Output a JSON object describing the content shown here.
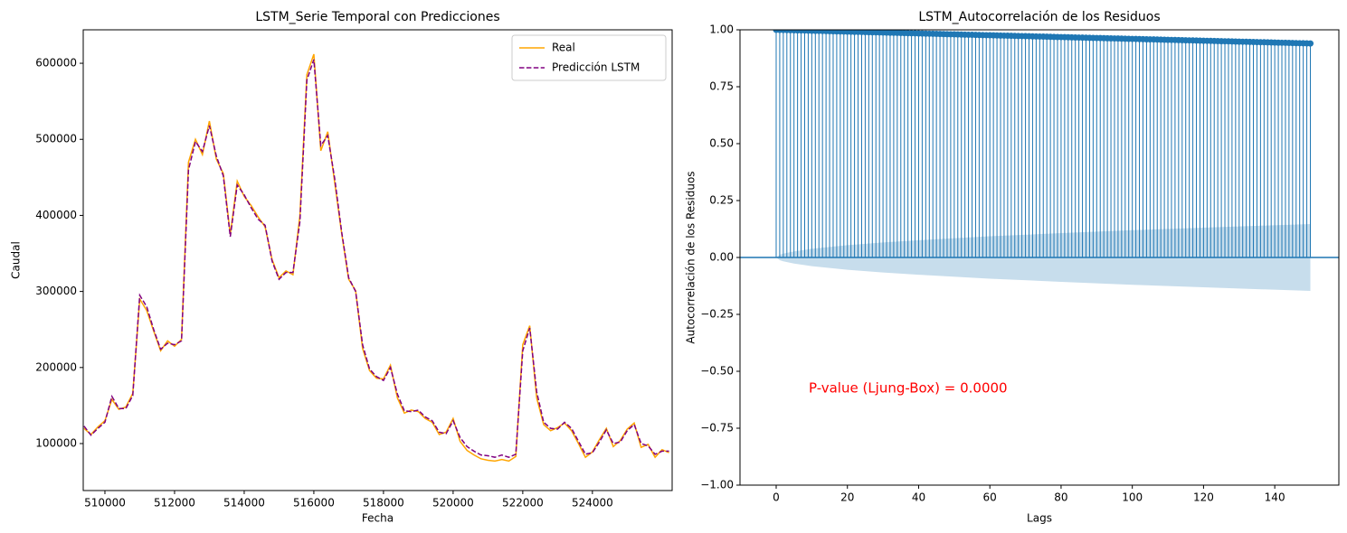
{
  "chart_data": [
    {
      "type": "line",
      "title": "LSTM_Serie Temporal con Predicciones",
      "x_label": "Fecha",
      "y_label": "Caudal",
      "xlim": [
        509377,
        526290
      ],
      "ylim": [
        38250,
        644000
      ],
      "xticks": [
        510000,
        512000,
        514000,
        516000,
        518000,
        520000,
        522000,
        524000
      ],
      "yticks": [
        100000,
        200000,
        300000,
        400000,
        500000,
        600000
      ],
      "legend": "upper right",
      "x": [
        509400,
        509600,
        509800,
        510000,
        510200,
        510400,
        510600,
        510800,
        511000,
        511200,
        511400,
        511600,
        511800,
        512000,
        512200,
        512400,
        512600,
        512800,
        513000,
        513200,
        513400,
        513600,
        513800,
        514000,
        514200,
        514400,
        514600,
        514800,
        515000,
        515200,
        515400,
        515600,
        515800,
        516000,
        516200,
        516400,
        516600,
        516800,
        517000,
        517200,
        517400,
        517600,
        517800,
        518000,
        518200,
        518400,
        518600,
        518800,
        519000,
        519200,
        519400,
        519600,
        519800,
        520000,
        520200,
        520400,
        520600,
        520800,
        521000,
        521200,
        521400,
        521600,
        521800,
        522000,
        522200,
        522400,
        522600,
        522800,
        523000,
        523200,
        523400,
        523600,
        523800,
        524000,
        524200,
        524400,
        524600,
        524800,
        525000,
        525200,
        525400,
        525600,
        525800,
        526000,
        526200
      ],
      "series": [
        {
          "name": "Real",
          "color": "#ffa500",
          "dash": "solid",
          "values": [
            120000,
            112000,
            122000,
            130000,
            158000,
            145000,
            148000,
            166000,
            290000,
            275000,
            248000,
            222000,
            235000,
            228000,
            237000,
            470000,
            500000,
            480000,
            524000,
            474000,
            455000,
            375000,
            445000,
            425000,
            413000,
            398000,
            385000,
            342000,
            318000,
            327000,
            322000,
            400000,
            585000,
            612000,
            485000,
            510000,
            443000,
            376000,
            316000,
            301000,
            225000,
            196000,
            186000,
            185000,
            203000,
            160000,
            140000,
            144000,
            142000,
            133000,
            128000,
            112000,
            115000,
            133000,
            103000,
            91000,
            85000,
            80000,
            78000,
            77000,
            79000,
            77000,
            83000,
            230000,
            255000,
            160000,
            125000,
            117000,
            121000,
            127000,
            117000,
            100000,
            82000,
            89000,
            105000,
            120000,
            96000,
            104000,
            119000,
            127000,
            95000,
            99000,
            82000,
            92000,
            88000
          ]
        },
        {
          "name": "Predicción LSTM",
          "color": "#800080",
          "dash": "dashed",
          "values": [
            123000,
            111000,
            120000,
            128000,
            162000,
            146000,
            146000,
            163000,
            295000,
            280000,
            250000,
            224000,
            232000,
            230000,
            235000,
            460000,
            497000,
            484000,
            518000,
            478000,
            452000,
            372000,
            440000,
            427000,
            410000,
            395000,
            387000,
            340000,
            316000,
            325000,
            325000,
            392000,
            578000,
            605000,
            492000,
            505000,
            448000,
            378000,
            318000,
            300000,
            230000,
            198000,
            188000,
            183000,
            200000,
            165000,
            143000,
            142000,
            144000,
            135000,
            130000,
            115000,
            113000,
            130000,
            108000,
            96000,
            90000,
            85000,
            84000,
            82000,
            85000,
            82000,
            86000,
            222000,
            252000,
            168000,
            128000,
            120000,
            119000,
            128000,
            120000,
            103000,
            86000,
            88000,
            102000,
            118000,
            100000,
            102000,
            117000,
            125000,
            100000,
            97000,
            86000,
            90000,
            90000
          ]
        }
      ]
    },
    {
      "type": "stem",
      "title": "LSTM_Autocorrelación de los Residuos",
      "x_label": "Lags",
      "y_label": "Autocorrelación de los Residuos",
      "xlim": [
        -10.16,
        158.0
      ],
      "ylim": [
        -1,
        1
      ],
      "xticks": [
        0,
        20,
        40,
        60,
        80,
        100,
        120,
        140
      ],
      "yticks": [
        {
          "value": -1,
          "label": "−1.00"
        },
        {
          "value": -0.75,
          "label": "−0.75"
        },
        {
          "value": -0.5,
          "label": "−0.50"
        },
        {
          "value": -0.25,
          "label": "−0.25"
        },
        {
          "value": 0,
          "label": "0.00"
        },
        {
          "value": 0.25,
          "label": "0.25"
        },
        {
          "value": 0.5,
          "label": "0.50"
        },
        {
          "value": 0.75,
          "label": "0.75"
        },
        {
          "value": 1,
          "label": "1.00"
        }
      ],
      "color": "#1f77b4",
      "annotation": {
        "text": "P-value (Ljung-Box) = 0.0000",
        "color": "#ff0000"
      },
      "confidence_band": {
        "x": [
          0,
          1,
          2,
          5,
          10,
          20,
          30,
          40,
          60,
          80,
          100,
          120,
          150
        ],
        "upper": [
          0,
          0.012,
          0.017,
          0.027,
          0.038,
          0.054,
          0.066,
          0.076,
          0.093,
          0.107,
          0.12,
          0.131,
          0.147
        ],
        "lower": [
          0,
          -0.012,
          -0.017,
          -0.027,
          -0.038,
          -0.054,
          -0.066,
          -0.076,
          -0.093,
          -0.107,
          -0.12,
          -0.131,
          -0.147
        ]
      },
      "x": [
        0,
        1,
        2,
        3,
        4,
        5,
        6,
        7,
        8,
        9,
        10,
        11,
        12,
        13,
        14,
        15,
        16,
        17,
        18,
        19,
        20,
        21,
        22,
        23,
        24,
        25,
        26,
        27,
        28,
        29,
        30,
        31,
        32,
        33,
        34,
        35,
        36,
        37,
        38,
        39,
        40,
        41,
        42,
        43,
        44,
        45,
        46,
        47,
        48,
        49,
        50,
        51,
        52,
        53,
        54,
        55,
        56,
        57,
        58,
        59,
        60,
        61,
        62,
        63,
        64,
        65,
        66,
        67,
        68,
        69,
        70,
        71,
        72,
        73,
        74,
        75,
        76,
        77,
        78,
        79,
        80,
        81,
        82,
        83,
        84,
        85,
        86,
        87,
        88,
        89,
        90,
        91,
        92,
        93,
        94,
        95,
        96,
        97,
        98,
        99,
        100,
        101,
        102,
        103,
        104,
        105,
        106,
        107,
        108,
        109,
        110,
        111,
        112,
        113,
        114,
        115,
        116,
        117,
        118,
        119,
        120,
        121,
        122,
        123,
        124,
        125,
        126,
        127,
        128,
        129,
        130,
        131,
        132,
        133,
        134,
        135,
        136,
        137,
        138,
        139,
        140,
        141,
        142,
        143,
        144,
        145,
        146,
        147,
        148,
        149,
        150
      ],
      "values": [
        1,
        0.9996,
        0.9992,
        0.9988,
        0.9984,
        0.998,
        0.9976,
        0.9972,
        0.9968,
        0.9964,
        0.996,
        0.9956,
        0.9952,
        0.9948,
        0.9944,
        0.994,
        0.9936,
        0.9932,
        0.9928,
        0.9924,
        0.992,
        0.9916,
        0.9912,
        0.9908,
        0.9904,
        0.99,
        0.9896,
        0.9892,
        0.9888,
        0.9884,
        0.988,
        0.9876,
        0.9872,
        0.9868,
        0.9864,
        0.986,
        0.9856,
        0.9852,
        0.9848,
        0.9844,
        0.984,
        0.9836,
        0.9832,
        0.9828,
        0.9824,
        0.982,
        0.9816,
        0.9812,
        0.9808,
        0.9804,
        0.98,
        0.9796,
        0.9792,
        0.9788,
        0.9784,
        0.978,
        0.9776,
        0.9772,
        0.9768,
        0.9764,
        0.976,
        0.9756,
        0.9752,
        0.9748,
        0.9744,
        0.974,
        0.9736,
        0.9732,
        0.9728,
        0.9724,
        0.972,
        0.9716,
        0.9712,
        0.9708,
        0.9704,
        0.97,
        0.9696,
        0.9692,
        0.9688,
        0.9684,
        0.968,
        0.9676,
        0.9672,
        0.9668,
        0.9664,
        0.966,
        0.9656,
        0.9652,
        0.9648,
        0.9644,
        0.964,
        0.9636,
        0.9632,
        0.9628,
        0.9624,
        0.962,
        0.9616,
        0.9612,
        0.9608,
        0.9604,
        0.96,
        0.9596,
        0.9592,
        0.9588,
        0.9584,
        0.958,
        0.9576,
        0.9572,
        0.9568,
        0.9564,
        0.956,
        0.9556,
        0.9552,
        0.9548,
        0.9544,
        0.954,
        0.9536,
        0.9532,
        0.9528,
        0.9524,
        0.952,
        0.9516,
        0.9512,
        0.9508,
        0.9504,
        0.95,
        0.9496,
        0.9492,
        0.9488,
        0.9484,
        0.948,
        0.9476,
        0.9472,
        0.9468,
        0.9464,
        0.946,
        0.9456,
        0.9452,
        0.9448,
        0.9444,
        0.944,
        0.9436,
        0.9432,
        0.9428,
        0.9424,
        0.942,
        0.9416,
        0.9412,
        0.9408,
        0.9404,
        0.94
      ]
    }
  ]
}
